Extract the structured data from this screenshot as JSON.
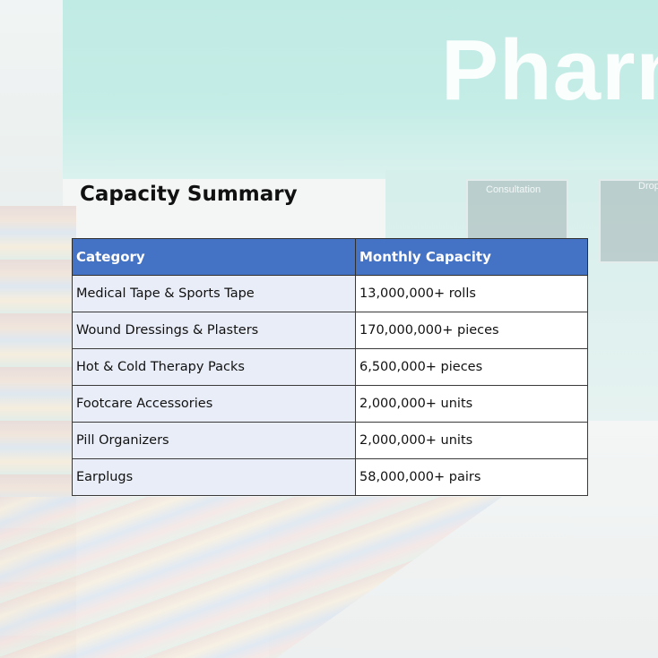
{
  "background": {
    "sign_text": "Pharm",
    "counter_signs": [
      "Consultation",
      "Drop"
    ],
    "description_colors": {
      "wall": "#a6e3da",
      "accent": "#4472c4"
    }
  },
  "title": "Capacity Summary",
  "table": {
    "headers": [
      "Category",
      "Monthly Capacity"
    ],
    "rows": [
      {
        "category": "Medical Tape & Sports Tape",
        "capacity": "13,000,000+ rolls"
      },
      {
        "category": "Wound Dressings & Plasters",
        "capacity": "170,000,000+ pieces"
      },
      {
        "category": "Hot & Cold Therapy Packs",
        "capacity": "6,500,000+ pieces"
      },
      {
        "category": "Footcare Accessories",
        "capacity": "2,000,000+ units"
      },
      {
        "category": "Pill Organizers",
        "capacity": "2,000,000+ units"
      },
      {
        "category": "Earplugs",
        "capacity": "58,000,000+ pairs"
      }
    ]
  }
}
